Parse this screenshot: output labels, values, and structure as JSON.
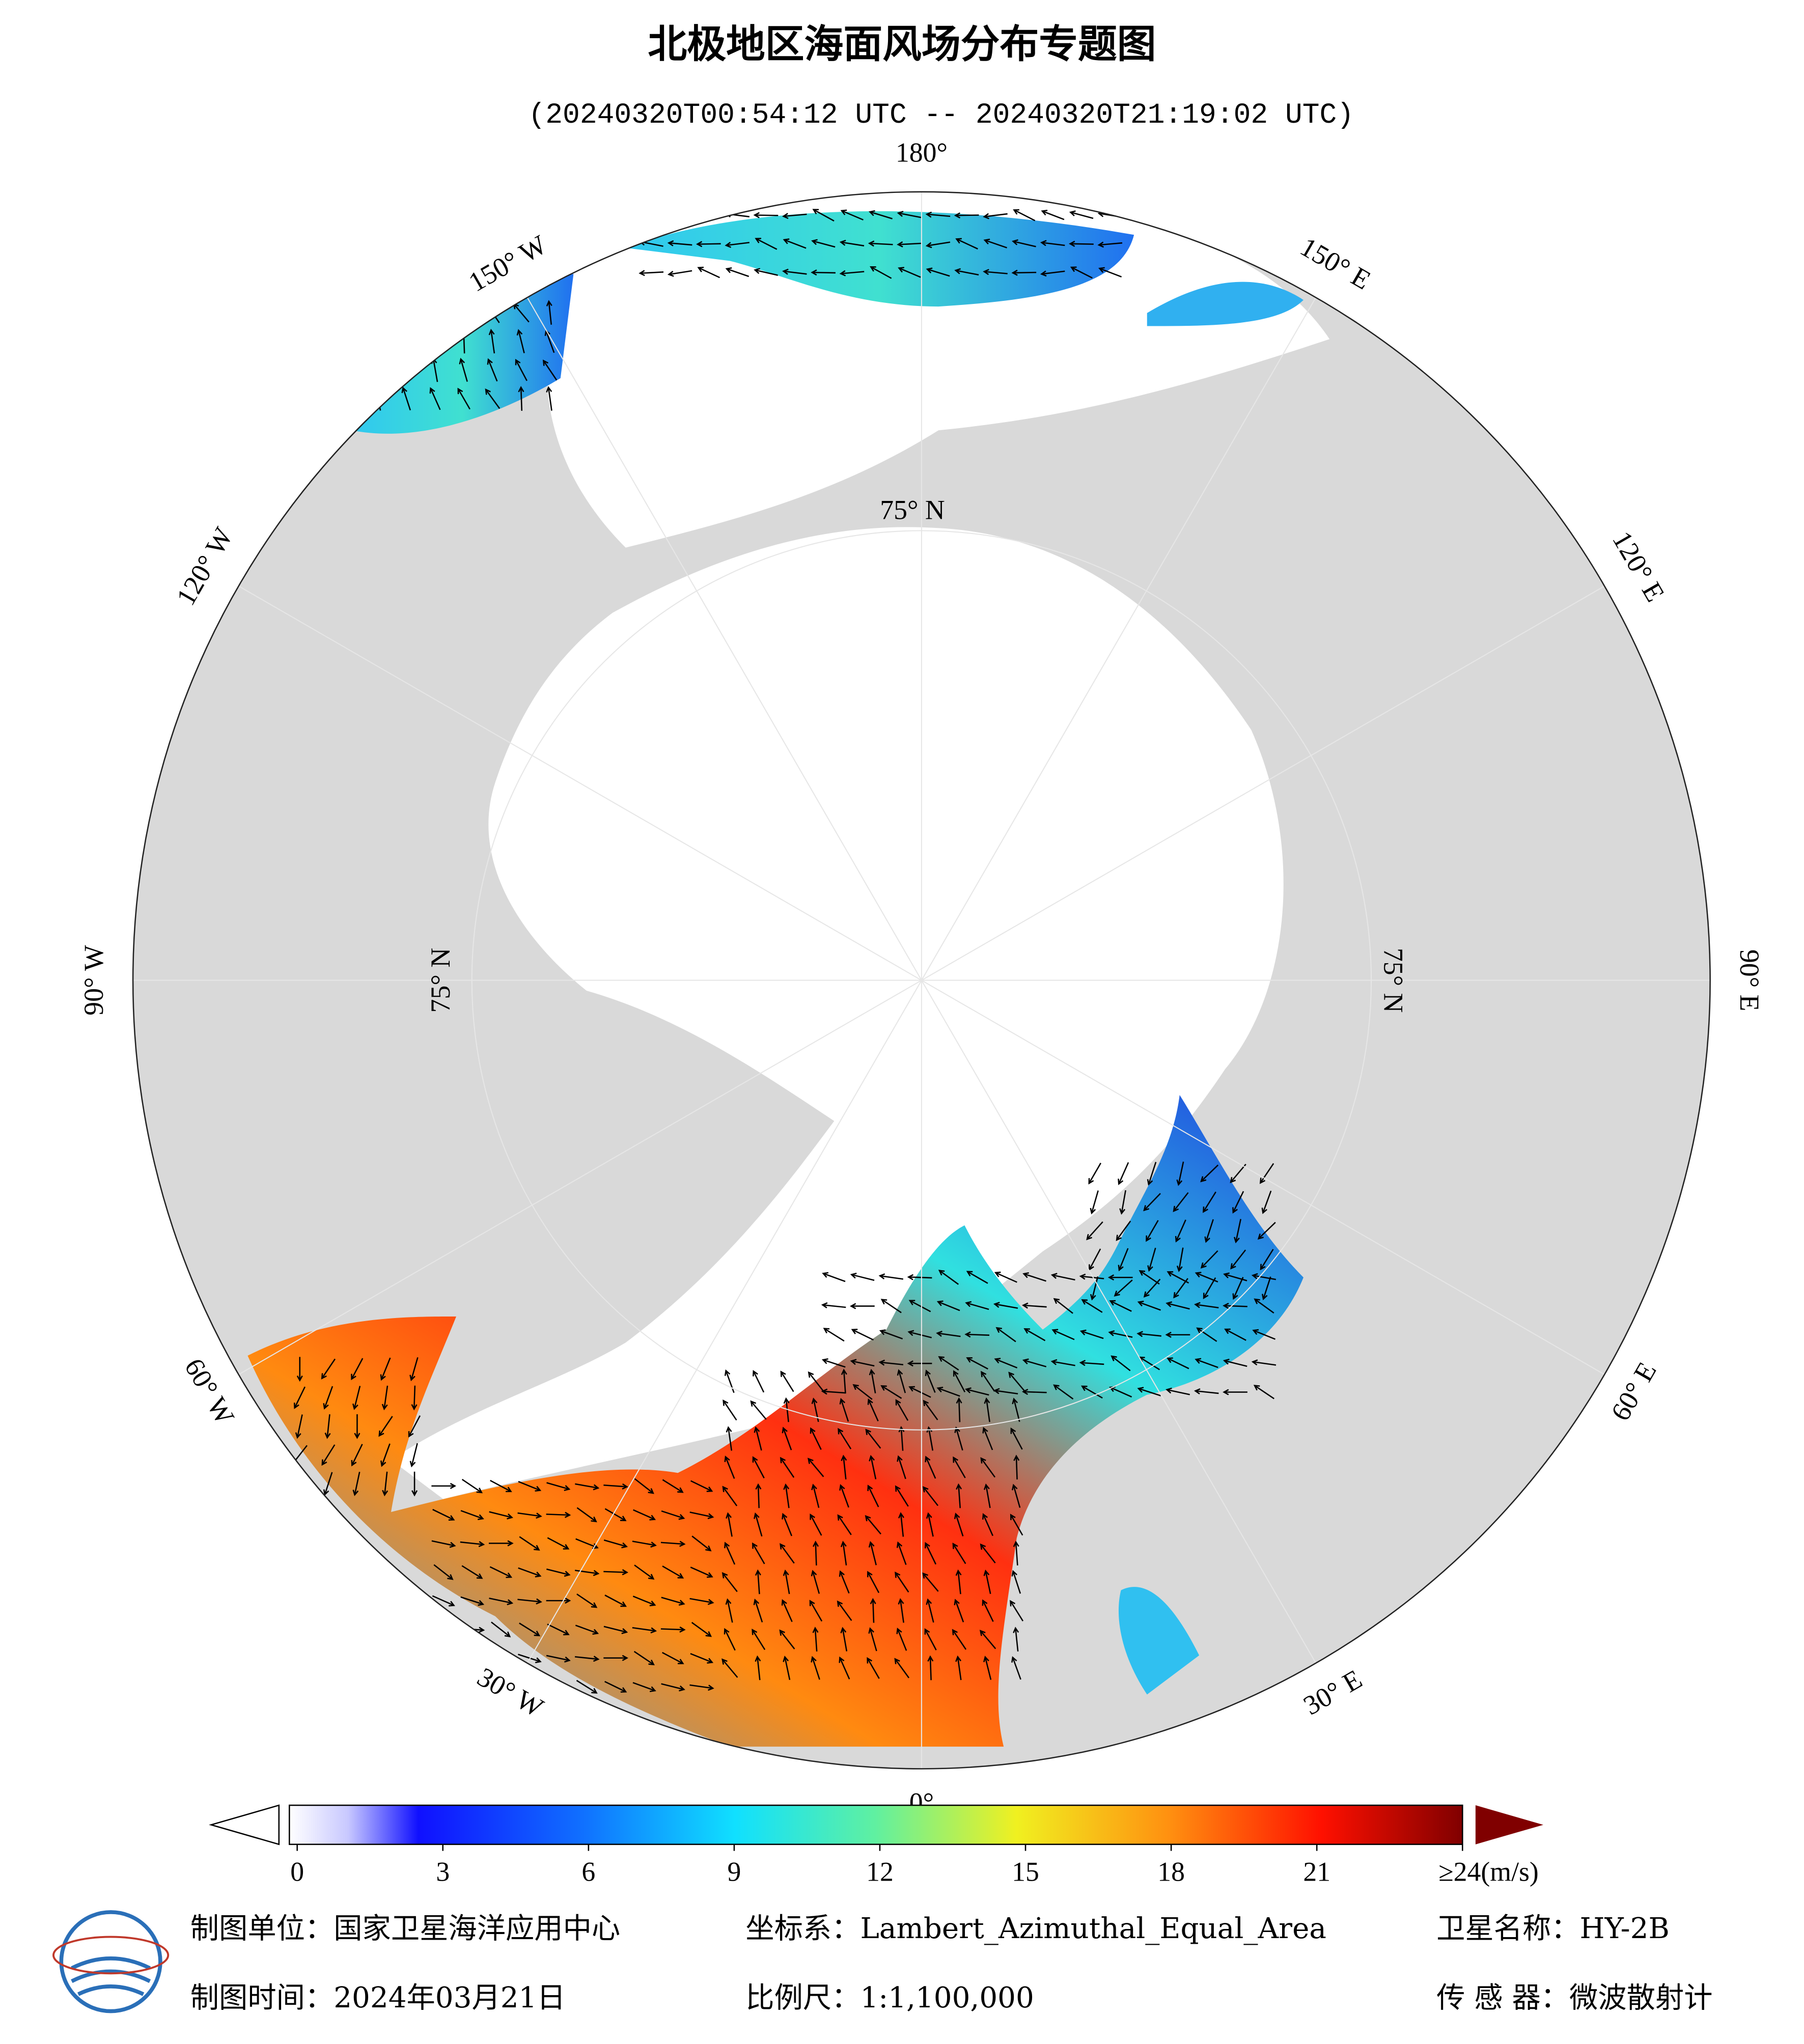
{
  "header": {
    "title": "北极地区海面风场分布专题图",
    "subtitle": "(20240320T00:54:12 UTC -- 20240320T21:19:02 UTC)"
  },
  "map": {
    "lon_labels": [
      "0°",
      "30° E",
      "60° E",
      "90° E",
      "120° E",
      "150° E",
      "180°",
      "150° W",
      "120° W",
      "90° W",
      "60° W",
      "30° W"
    ],
    "lat_label": "75° N"
  },
  "colorbar": {
    "lim": [
      0,
      24
    ],
    "ticks": [
      0,
      3,
      6,
      9,
      12,
      15,
      18,
      21,
      {
        "value": 24,
        "label": "≥24(m/s)"
      }
    ]
  },
  "footer": {
    "unit": "制图单位：国家卫星海洋应用中心",
    "coordinate": "坐标系：Lambert_Azimuthal_Equal_Area",
    "satellite": "卫星名称：HY-2B",
    "date": "制图时间：2024年03月21日",
    "scale": "比例尺：1:1,100,000",
    "sensor": "传 感 器：微波散射计"
  }
}
